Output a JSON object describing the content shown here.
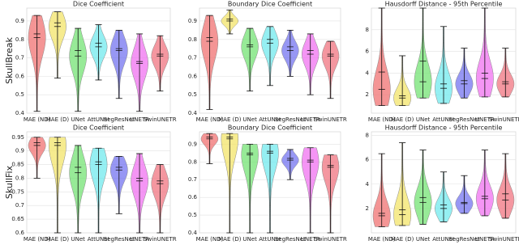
{
  "chart_data": [
    {
      "type": "violin",
      "title": "Dice Coefficient",
      "ylabel": "SkullBreak",
      "categories": [
        "MAE (ND)",
        "MAE (D)",
        "UNet",
        "AttUNet",
        "SegResNet",
        "UNETR",
        "SwinUNETR"
      ],
      "colors": [
        "#f07272",
        "#f3e46a",
        "#74e374",
        "#72e9ee",
        "#7474f0",
        "#f072f0",
        "#f07480"
      ],
      "min": [
        0.41,
        0.59,
        0.41,
        0.58,
        0.48,
        0.41,
        0.52
      ],
      "max": [
        0.93,
        0.95,
        0.86,
        0.88,
        0.85,
        0.83,
        0.82
      ],
      "mean": [
        0.83,
        0.89,
        0.74,
        0.78,
        0.75,
        0.68,
        0.72
      ],
      "median": [
        0.81,
        0.87,
        0.71,
        0.76,
        0.74,
        0.67,
        0.71
      ],
      "ylim": [
        0.4,
        0.97
      ],
      "yticks": [
        0.4,
        0.5,
        0.6,
        0.7,
        0.8,
        0.9
      ],
      "grid": true
    },
    {
      "type": "violin",
      "title": "Boundary Dice Coefficient",
      "categories": [
        "MAE (ND)",
        "MAE (D)",
        "UNet",
        "AttUNet",
        "SegResNet",
        "UNETR",
        "SwinUNETR"
      ],
      "colors": [
        "#f07272",
        "#f3e46a",
        "#74e374",
        "#72e9ee",
        "#7474f0",
        "#f072f0",
        "#f07480"
      ],
      "min": [
        0.42,
        0.83,
        0.52,
        0.55,
        0.6,
        0.5,
        0.48
      ],
      "max": [
        0.93,
        0.96,
        0.86,
        0.87,
        0.85,
        0.83,
        0.79
      ],
      "mean": [
        0.81,
        0.91,
        0.77,
        0.8,
        0.76,
        0.74,
        0.72
      ],
      "median": [
        0.79,
        0.9,
        0.76,
        0.78,
        0.74,
        0.72,
        0.71
      ],
      "ylim": [
        0.4,
        0.97
      ],
      "yticks": [
        0.4,
        0.5,
        0.6,
        0.7,
        0.8,
        0.9
      ],
      "grid": true
    },
    {
      "type": "violin",
      "title": "Hausdorff Distance - 95th Percentile",
      "categories": [
        "MAE (ND)",
        "MAE (D)",
        "UNet",
        "AttUNet",
        "SegResNet",
        "UNETR",
        "SwinUNETR"
      ],
      "colors": [
        "#f07272",
        "#f3e46a",
        "#74e374",
        "#72e9ee",
        "#7474f0",
        "#f072f0",
        "#f07480"
      ],
      "min": [
        1,
        1,
        1.7,
        1.2,
        1.7,
        1.8,
        1.8
      ],
      "max": [
        10,
        5.6,
        10,
        8.3,
        6.3,
        10,
        6.3
      ],
      "mean": [
        4.1,
        1.9,
        5.1,
        3,
        3.3,
        4,
        3.2
      ],
      "median": [
        2.5,
        1.7,
        3.2,
        2.6,
        3,
        3.5,
        3
      ],
      "ylim": [
        0.3,
        10
      ],
      "yticks": [
        2,
        4,
        6,
        8
      ],
      "grid": true
    },
    {
      "type": "violin",
      "title": "Dice Coefficient",
      "ylabel": "SkullFix",
      "categories": [
        "MAE (ND)",
        "MAE (D)",
        "UNet",
        "AttUNet",
        "SegResNet",
        "UNETR",
        "SwinUNETR"
      ],
      "colors": [
        "#f07272",
        "#f3e46a",
        "#74e374",
        "#72e9ee",
        "#7474f0",
        "#f072f0",
        "#f07480"
      ],
      "min": [
        0.8,
        0.6,
        0.6,
        0.6,
        0.67,
        0.6,
        0.6
      ],
      "max": [
        0.95,
        0.95,
        0.92,
        0.91,
        0.88,
        0.89,
        0.85
      ],
      "mean": [
        0.93,
        0.93,
        0.84,
        0.86,
        0.84,
        0.8,
        0.79
      ],
      "median": [
        0.92,
        0.92,
        0.82,
        0.85,
        0.83,
        0.79,
        0.78
      ],
      "ylim": [
        0.6,
        0.97
      ],
      "yticks": [
        0.6,
        0.65,
        0.7,
        0.75,
        0.8,
        0.85,
        0.9,
        0.95
      ],
      "grid": true
    },
    {
      "type": "violin",
      "title": "Boundary Dice Coefficient",
      "categories": [
        "MAE (ND)",
        "MAE (D)",
        "UNet",
        "AttUNet",
        "SegResNet",
        "UNETR",
        "SwinUNETR"
      ],
      "colors": [
        "#f07272",
        "#f3e46a",
        "#74e374",
        "#72e9ee",
        "#7474f0",
        "#f072f0",
        "#f07480"
      ],
      "min": [
        0.79,
        0.4,
        0.4,
        0.4,
        0.7,
        0.4,
        0.4
      ],
      "max": [
        0.96,
        0.96,
        0.9,
        0.9,
        0.87,
        0.88,
        0.84
      ],
      "mean": [
        0.94,
        0.94,
        0.85,
        0.86,
        0.82,
        0.81,
        0.78
      ],
      "median": [
        0.93,
        0.93,
        0.84,
        0.85,
        0.81,
        0.8,
        0.77
      ],
      "ylim": [
        0.4,
        0.97
      ],
      "yticks": [
        0.4,
        0.5,
        0.6,
        0.7,
        0.8,
        0.9
      ],
      "grid": true
    },
    {
      "type": "violin",
      "title": "Hausdorff Distance - 95th Percentile",
      "categories": [
        "MAE (ND)",
        "MAE (D)",
        "UNet",
        "AttUNet",
        "SegResNet",
        "UNETR",
        "SwinUNETR"
      ],
      "colors": [
        "#f07272",
        "#f3e46a",
        "#74e374",
        "#72e9ee",
        "#7474f0",
        "#f072f0",
        "#f07480"
      ],
      "min": [
        0.5,
        0.6,
        0.7,
        0.9,
        1.6,
        1.4,
        1.2
      ],
      "max": [
        6.5,
        7.4,
        6.8,
        5,
        4.7,
        6.8,
        6.5
      ],
      "mean": [
        1.6,
        1.9,
        2.9,
        2.3,
        2.5,
        3,
        3.2
      ],
      "median": [
        1.4,
        1.5,
        2.5,
        2,
        2.4,
        2.8,
        2.7
      ],
      "ylim": [
        0,
        8.3
      ],
      "yticks": [
        2,
        4,
        6,
        8
      ],
      "grid": true
    }
  ]
}
